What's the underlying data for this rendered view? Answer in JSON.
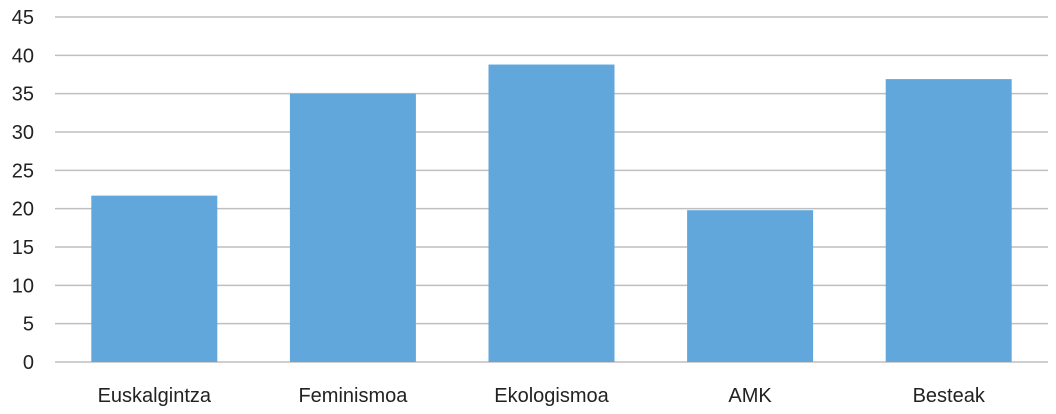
{
  "chart_data": {
    "type": "bar",
    "categories": [
      "Euskalgintza",
      "Feminismoa",
      "Ekologismoa",
      "AMK",
      "Besteak"
    ],
    "values": [
      21.7,
      35.0,
      38.8,
      19.8,
      36.9
    ],
    "ylim": [
      0,
      45
    ],
    "yticks": [
      "0",
      "5",
      "10",
      "15",
      "20",
      "25",
      "30",
      "35",
      "40",
      "45"
    ],
    "grid": true,
    "bar_color": "#61a7db",
    "grid_color": "#bfbfbf"
  }
}
